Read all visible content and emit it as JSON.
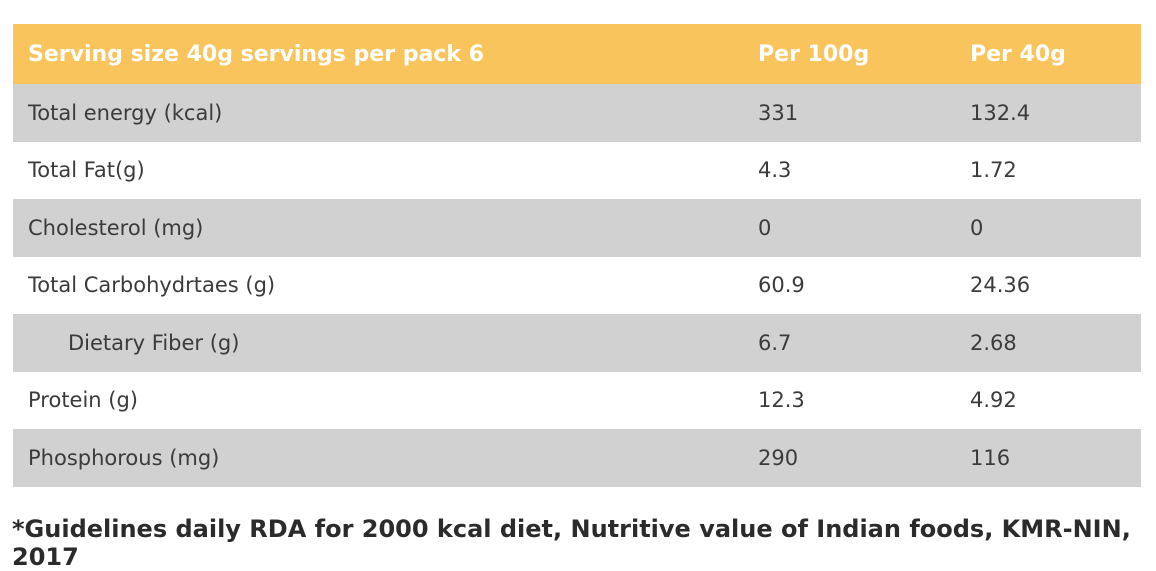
{
  "chart_data": {
    "type": "table",
    "columns": [
      "Serving size 40g servings per pack 6",
      "Per 100g",
      "Per 40g"
    ],
    "rows": [
      {
        "label": "Total energy (kcal)",
        "per_100g": "331",
        "per_40g": "132.4",
        "indent": false
      },
      {
        "label": "Total Fat(g)",
        "per_100g": "4.3",
        "per_40g": "1.72",
        "indent": false
      },
      {
        "label": "Cholesterol (mg)",
        "per_100g": "0",
        "per_40g": "0",
        "indent": false
      },
      {
        "label": "Total Carbohydrtaes (g)",
        "per_100g": "60.9",
        "per_40g": "24.36",
        "indent": false
      },
      {
        "label": "Dietary Fiber (g)",
        "per_100g": "6.7",
        "per_40g": "2.68",
        "indent": true
      },
      {
        "label": "Protein (g)",
        "per_100g": "12.3",
        "per_40g": "4.92",
        "indent": false
      },
      {
        "label": "Phosphorous (mg)",
        "per_100g": "290",
        "per_40g": "116",
        "indent": false
      }
    ],
    "footnote": "*Guidelines daily RDA for 2000 kcal diet, Nutritive value of Indian foods, KMR-NIN, 2017",
    "layout": {
      "legend": "none",
      "grid": "off",
      "row_striping": "odd-rows-gray"
    }
  },
  "colors": {
    "header_bg": "#F9C45C",
    "row_alt_bg": "#D1D1D1",
    "row_bg": "#FFFFFF",
    "header_text": "#FFFFFF",
    "body_text": "#3B3B3B",
    "footnote_text": "#2B2B2B"
  }
}
